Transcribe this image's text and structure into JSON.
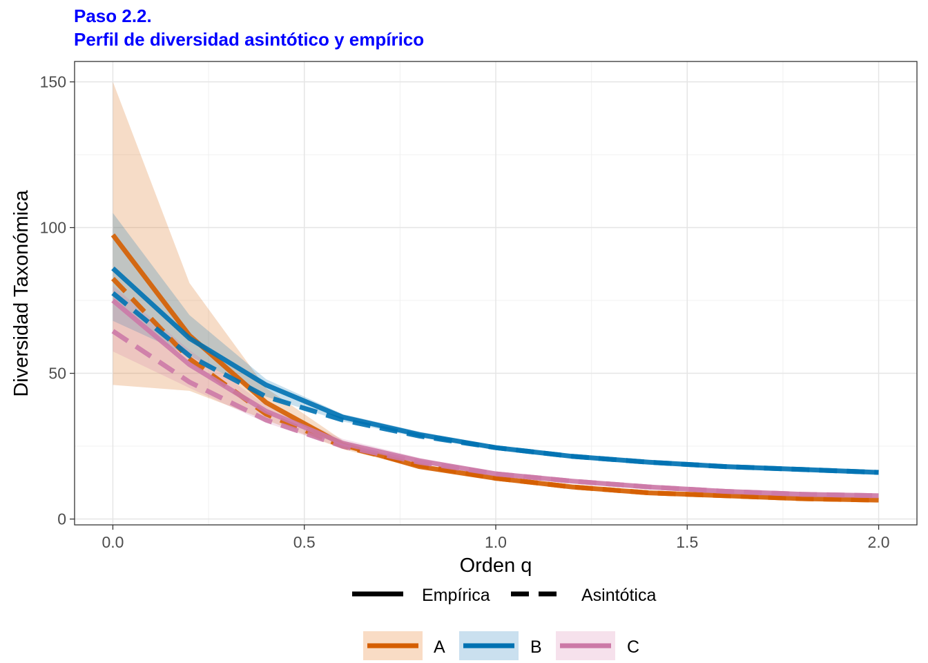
{
  "chart_data": {
    "type": "line",
    "title": "Paso 2.2.",
    "subtitle": "Perfil de diversidad asintótico y empírico",
    "xlabel": "Orden q",
    "ylabel": "Diversidad Taxonómica",
    "xlim": [
      -0.1,
      2.1
    ],
    "ylim": [
      -2,
      157
    ],
    "x_ticks": [
      "0.0",
      "0.5",
      "1.0",
      "1.5",
      "2.0"
    ],
    "y_ticks": [
      "0",
      "50",
      "100",
      "150"
    ],
    "grid": true,
    "legend_position": "bottom",
    "linetype_legend": [
      {
        "label": "Empírica",
        "style": "solid"
      },
      {
        "label": "Asintótica",
        "style": "dashed"
      }
    ],
    "series": [
      {
        "name": "A",
        "color": "#D55E00",
        "fill": "#F5C49F",
        "x": [
          0.0,
          0.2,
          0.4,
          0.6,
          0.8,
          1.0,
          1.2,
          1.4,
          1.6,
          1.8,
          2.0
        ],
        "empirica": [
          97.5,
          63,
          40,
          25.5,
          18,
          14,
          11,
          9,
          8,
          7,
          6.5
        ],
        "asintotica": [
          82.5,
          55,
          36,
          25,
          18.5,
          14,
          11,
          9,
          8,
          7,
          6.5
        ],
        "ci_lower": [
          46,
          44,
          34,
          24,
          17.5,
          13.5,
          10.5,
          8.5,
          7.5,
          6.5,
          6
        ],
        "ci_upper": [
          150,
          81,
          45,
          27,
          19,
          14.5,
          11.5,
          9.5,
          8.5,
          7.5,
          7
        ]
      },
      {
        "name": "B",
        "color": "#0072B2",
        "fill": "#A6CCE4",
        "x": [
          0.0,
          0.2,
          0.4,
          0.6,
          0.8,
          1.0,
          1.2,
          1.4,
          1.6,
          1.8,
          2.0
        ],
        "empirica": [
          86,
          62,
          46,
          35,
          29,
          24.5,
          21.5,
          19.5,
          18,
          17,
          16
        ],
        "asintotica": [
          77.5,
          56,
          42,
          34,
          28.5,
          24.5,
          21.5,
          19.5,
          18,
          17,
          16
        ],
        "ci_lower": [
          68,
          56,
          42,
          33.5,
          28,
          24,
          21,
          19,
          17.5,
          16.5,
          15.5
        ],
        "ci_upper": [
          105,
          70,
          48,
          36,
          30,
          25,
          22,
          20,
          18.5,
          17.5,
          16.5
        ]
      },
      {
        "name": "C",
        "color": "#CC79A7",
        "fill": "#F0CDE0",
        "x": [
          0.0,
          0.2,
          0.4,
          0.6,
          0.8,
          1.0,
          1.2,
          1.4,
          1.6,
          1.8,
          2.0
        ],
        "empirica": [
          75,
          53,
          37,
          26,
          20,
          15.5,
          13,
          11,
          9.5,
          8.5,
          8
        ],
        "asintotica": [
          64.5,
          47,
          34,
          25,
          19.5,
          15.5,
          13,
          11,
          9.5,
          8.5,
          8
        ],
        "ci_lower": [
          57.5,
          45,
          33,
          24.5,
          19,
          15,
          12.5,
          10.5,
          9,
          8,
          7.5
        ],
        "ci_upper": [
          80,
          58,
          39,
          27.5,
          21,
          16,
          13.5,
          11.5,
          10,
          9,
          8.5
        ]
      }
    ]
  }
}
